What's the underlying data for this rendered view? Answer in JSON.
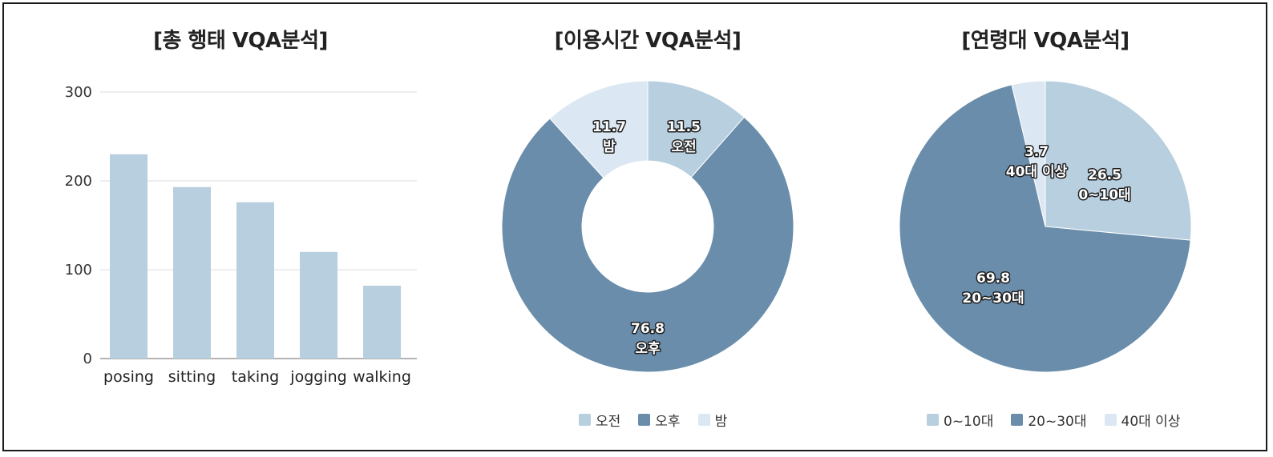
{
  "chart_data": [
    {
      "type": "bar",
      "title": "[총 행태 VQA분석]",
      "categories": [
        "posing",
        "sitting",
        "taking",
        "jogging",
        "walking"
      ],
      "values": [
        230,
        193,
        176,
        120,
        82
      ],
      "ylim": [
        0,
        300
      ],
      "yticks": [
        "0",
        "100",
        "200",
        "300"
      ],
      "grid": true,
      "color": "#b8cfe0"
    },
    {
      "type": "pie",
      "variant": "donut",
      "title": "[이용시간 VQA분석]",
      "slices": [
        {
          "label": "오전",
          "value": 11.5,
          "value_text": "11.5",
          "color": "#b8cfe0"
        },
        {
          "label": "오후",
          "value": 76.8,
          "value_text": "76.8",
          "color": "#6a8dab"
        },
        {
          "label": "밤",
          "value": 11.7,
          "value_text": "11.7",
          "color": "#dbe8f3"
        }
      ],
      "legend": [
        "오전",
        "오후",
        "밤"
      ],
      "legend_position": "bottom"
    },
    {
      "type": "pie",
      "title": "[연령대 VQA분석]",
      "slices": [
        {
          "label": "0~10대",
          "value": 26.5,
          "value_text": "26.5",
          "color": "#b8cfe0"
        },
        {
          "label": "20~30대",
          "value": 69.8,
          "value_text": "69.8",
          "color": "#6a8dab"
        },
        {
          "label": "40대 이상",
          "value": 3.7,
          "value_text": "3.7",
          "color": "#dbe8f3"
        }
      ],
      "legend": [
        "0~10대",
        "20~30대",
        "40대 이상"
      ],
      "legend_position": "bottom"
    }
  ]
}
